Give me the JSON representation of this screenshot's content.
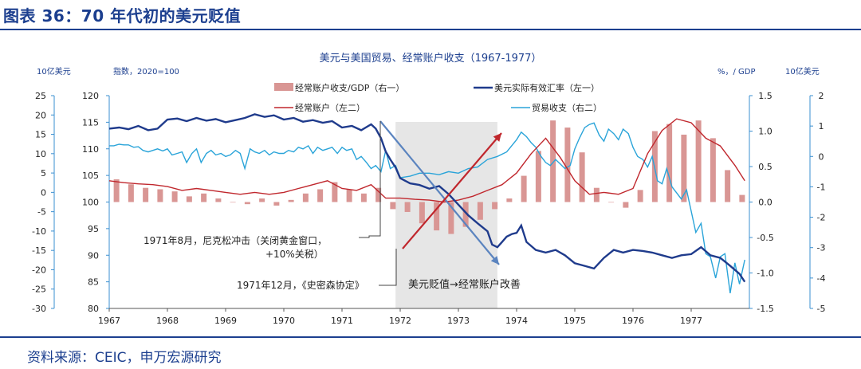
{
  "figure_title": "图表 36：70 年代初的美元贬值",
  "source": "资料来源：CEIC，申万宏源研究",
  "colors": {
    "brand": "#1c3f8f",
    "bar": "#d99694",
    "reer": "#1f3b8c",
    "current_account": "#c0272d",
    "trade": "#2aa4d9",
    "axis": "#3a8fd0",
    "shade": "#e6e6e6",
    "arrow_up": "#c0272d",
    "arrow_down": "#5b84bf"
  },
  "chart_data": {
    "type": "line",
    "title": "美元与美国贸易、经常账户收支（1967-1977）",
    "axis_titles": {
      "outer_left": "10亿美元",
      "inner_left": "指数，2020=100",
      "inner_right": "%，/ GDP",
      "outer_right": "10亿美元"
    },
    "x_ticks": [
      "1967",
      "1968",
      "1969",
      "1970",
      "1971",
      "1972",
      "1973",
      "1974",
      "1975",
      "1976",
      "1977"
    ],
    "axes": {
      "outer_left": {
        "ylim": [
          -30,
          25
        ],
        "ticks": [
          "25",
          "20",
          "15",
          "10",
          "5",
          "0",
          "-5",
          "-10",
          "-15",
          "-20",
          "-25",
          "-30"
        ]
      },
      "inner_left": {
        "ylim": [
          80,
          120
        ],
        "ticks": [
          "120",
          "115",
          "110",
          "105",
          "100",
          "95",
          "90",
          "85",
          "80"
        ]
      },
      "inner_right": {
        "ylim": [
          -1.5,
          1.5
        ],
        "ticks": [
          "1.5",
          "1.0",
          "0.5",
          "0.0",
          "-0.5",
          "-1.0",
          "-1.5"
        ]
      },
      "outer_right": {
        "ylim": [
          -5,
          2
        ],
        "ticks": [
          "2",
          "1",
          "0",
          "-1",
          "-2",
          "-3",
          "-4",
          "-5"
        ]
      }
    },
    "legend": [
      {
        "label": "经常账户收支/GDP（右一）",
        "kind": "bar",
        "color": "#d99694"
      },
      {
        "label": "美元实际有效汇率（左一）",
        "kind": "line",
        "color": "#1f3b8c"
      },
      {
        "label": "经常账户（左二）",
        "kind": "line",
        "color": "#c0272d"
      },
      {
        "label": "贸易收支（右二）",
        "kind": "line",
        "color": "#2aa4d9"
      }
    ],
    "bars_ca_gdp": {
      "x": [
        1967.0,
        1967.25,
        1967.5,
        1967.75,
        1968.0,
        1968.25,
        1968.5,
        1968.75,
        1969.0,
        1969.25,
        1969.5,
        1969.75,
        1970.0,
        1970.25,
        1970.5,
        1970.75,
        1971.0,
        1971.25,
        1971.5,
        1971.75,
        1972.0,
        1972.25,
        1972.5,
        1972.75,
        1973.0,
        1973.25,
        1973.5,
        1973.75,
        1974.0,
        1974.25,
        1974.5,
        1974.75,
        1975.0,
        1975.25,
        1975.5,
        1975.75,
        1976.0,
        1976.25,
        1976.5,
        1976.75,
        1977.0,
        1977.25,
        1977.5,
        1977.75
      ],
      "values": [
        0.32,
        0.25,
        0.2,
        0.18,
        0.15,
        0.08,
        0.12,
        0.05,
        0.0,
        -0.03,
        0.05,
        -0.05,
        0.03,
        0.12,
        0.18,
        0.28,
        0.18,
        0.12,
        0.2,
        -0.1,
        -0.14,
        -0.3,
        -0.4,
        -0.45,
        -0.35,
        -0.25,
        -0.1,
        0.05,
        0.37,
        0.72,
        1.15,
        1.05,
        0.7,
        0.2,
        0.0,
        -0.08,
        0.17,
        1.0,
        1.1,
        0.95,
        1.15,
        0.9,
        0.45,
        0.1
      ]
    },
    "series_reer": {
      "name": "美元实际有效汇率（左一）",
      "x": [
        1967.0,
        1967.17,
        1967.33,
        1967.5,
        1967.67,
        1967.83,
        1968.0,
        1968.17,
        1968.33,
        1968.5,
        1968.67,
        1968.83,
        1969.0,
        1969.17,
        1969.33,
        1969.5,
        1969.67,
        1969.83,
        1970.0,
        1970.17,
        1970.33,
        1970.5,
        1970.67,
        1970.83,
        1971.0,
        1971.17,
        1971.33,
        1971.5,
        1971.58,
        1971.67,
        1971.75,
        1971.83,
        1971.92,
        1972.0,
        1972.17,
        1972.33,
        1972.5,
        1972.67,
        1972.83,
        1973.0,
        1973.17,
        1973.33,
        1973.5,
        1973.58,
        1973.67,
        1973.75,
        1973.83,
        1973.92,
        1974.0,
        1974.08,
        1974.17,
        1974.33,
        1974.5,
        1974.67,
        1974.83,
        1975.0,
        1975.17,
        1975.33,
        1975.5,
        1975.67,
        1975.83,
        1976.0,
        1976.17,
        1976.33,
        1976.5,
        1976.67,
        1976.83,
        1977.0,
        1977.17,
        1977.33,
        1977.5,
        1977.67,
        1977.83,
        1977.92
      ],
      "values": [
        113.8,
        114.0,
        113.7,
        114.3,
        113.5,
        113.8,
        115.5,
        115.7,
        115.2,
        115.8,
        115.3,
        115.6,
        115.0,
        115.4,
        115.8,
        116.5,
        116.0,
        116.3,
        115.5,
        115.8,
        115.1,
        115.4,
        114.9,
        115.2,
        114.0,
        114.3,
        113.5,
        114.6,
        113.8,
        112.0,
        109.5,
        108.0,
        106.5,
        104.5,
        103.5,
        103.2,
        102.5,
        103.0,
        101.5,
        99.5,
        97.5,
        96.0,
        94.5,
        92.0,
        91.5,
        92.5,
        93.5,
        94.0,
        94.2,
        95.6,
        92.5,
        91.0,
        90.5,
        91.0,
        90.0,
        88.5,
        88.0,
        87.5,
        89.5,
        91.0,
        90.5,
        91.0,
        90.8,
        90.5,
        90.0,
        89.5,
        90.0,
        90.2,
        91.5,
        90.0,
        89.5,
        88.0,
        86.5,
        85.0
      ]
    },
    "series_current_account": {
      "name": "经常账户（左二）",
      "x": [
        1967.0,
        1967.25,
        1967.5,
        1967.75,
        1968.0,
        1968.25,
        1968.5,
        1968.75,
        1969.0,
        1969.25,
        1969.5,
        1969.75,
        1970.0,
        1970.25,
        1970.5,
        1970.75,
        1971.0,
        1971.25,
        1971.5,
        1971.75,
        1972.0,
        1972.25,
        1972.5,
        1972.75,
        1973.0,
        1973.25,
        1973.5,
        1973.75,
        1974.0,
        1974.25,
        1974.5,
        1974.75,
        1975.0,
        1975.25,
        1975.5,
        1975.75,
        1976.0,
        1976.25,
        1976.5,
        1976.75,
        1977.0,
        1977.25,
        1977.5,
        1977.75,
        1977.92
      ],
      "values": [
        3,
        2.5,
        2.2,
        2,
        1.5,
        0.5,
        1,
        0.5,
        0,
        -0.5,
        0,
        -0.5,
        0,
        1,
        2,
        3,
        1,
        0.5,
        2,
        -1.5,
        -1.5,
        -1.8,
        -2,
        -2.5,
        -2,
        -1,
        0.5,
        2,
        5,
        10,
        14,
        9,
        3,
        -0.5,
        0,
        -0.5,
        1,
        10,
        16,
        19,
        18,
        14,
        12,
        7,
        3
      ]
    },
    "series_trade": {
      "name": "贸易收支（右二）",
      "x": [
        1967.0,
        1967.08,
        1967.17,
        1967.25,
        1967.33,
        1967.42,
        1967.5,
        1967.58,
        1967.67,
        1967.75,
        1967.83,
        1967.92,
        1968.0,
        1968.08,
        1968.17,
        1968.25,
        1968.33,
        1968.42,
        1968.5,
        1968.58,
        1968.67,
        1968.75,
        1968.83,
        1968.92,
        1969.0,
        1969.08,
        1969.17,
        1969.25,
        1969.33,
        1969.42,
        1969.5,
        1969.58,
        1969.67,
        1969.75,
        1969.83,
        1969.92,
        1970.0,
        1970.08,
        1970.17,
        1970.25,
        1970.33,
        1970.42,
        1970.5,
        1970.58,
        1970.67,
        1970.75,
        1970.83,
        1970.92,
        1971.0,
        1971.08,
        1971.17,
        1971.25,
        1971.33,
        1971.42,
        1971.5,
        1971.58,
        1971.67,
        1971.75,
        1971.83,
        1971.92,
        1972.0,
        1972.17,
        1972.33,
        1972.5,
        1972.67,
        1972.83,
        1973.0,
        1973.17,
        1973.33,
        1973.5,
        1973.67,
        1973.83,
        1974.0,
        1974.08,
        1974.17,
        1974.25,
        1974.33,
        1974.42,
        1974.5,
        1974.58,
        1974.67,
        1974.75,
        1974.83,
        1974.92,
        1975.0,
        1975.08,
        1975.17,
        1975.25,
        1975.33,
        1975.42,
        1975.5,
        1975.58,
        1975.67,
        1975.75,
        1975.83,
        1975.92,
        1976.0,
        1976.08,
        1976.17,
        1976.25,
        1976.33,
        1976.42,
        1976.5,
        1976.58,
        1976.67,
        1976.75,
        1976.83,
        1976.92,
        1977.0,
        1977.08,
        1977.17,
        1977.25,
        1977.33,
        1977.42,
        1977.5,
        1977.58,
        1977.67,
        1977.75,
        1977.83,
        1977.92
      ],
      "values": [
        0.35,
        0.35,
        0.4,
        0.38,
        0.38,
        0.3,
        0.32,
        0.2,
        0.15,
        0.2,
        0.25,
        0.18,
        0.25,
        0.05,
        0.1,
        0.15,
        -0.2,
        0.1,
        0.25,
        -0.2,
        0.1,
        0.2,
        0.05,
        0.1,
        0.0,
        0.05,
        0.2,
        0.1,
        -0.4,
        0.25,
        0.15,
        0.1,
        0.2,
        0.05,
        0.15,
        0.1,
        0.1,
        0.2,
        0.15,
        0.3,
        0.25,
        0.35,
        0.1,
        0.3,
        0.2,
        0.25,
        0.3,
        0.1,
        0.3,
        0.2,
        0.25,
        -0.1,
        0.0,
        -0.2,
        -0.4,
        -0.3,
        -0.5,
        0.2,
        -0.4,
        -0.3,
        -0.7,
        -0.65,
        -0.55,
        -0.55,
        -0.6,
        -0.5,
        -0.55,
        -0.4,
        -0.35,
        -0.1,
        0.0,
        0.15,
        0.55,
        0.8,
        0.65,
        0.45,
        0.3,
        0.0,
        -0.2,
        -0.3,
        -0.1,
        -0.25,
        -0.4,
        -0.3,
        0.25,
        0.6,
        0.95,
        1.05,
        1.1,
        0.7,
        0.5,
        0.9,
        0.75,
        0.55,
        0.9,
        0.75,
        0.3,
        0.0,
        -0.1,
        -0.35,
        0.0,
        -0.8,
        -0.9,
        -0.4,
        -1.0,
        -1.2,
        -1.4,
        -1.1,
        -1.8,
        -2.5,
        -2.2,
        -3.2,
        -3.3,
        -4.0,
        -3.3,
        -3.2,
        -4.5,
        -3.5,
        -4.2,
        -3.4
      ]
    },
    "shade_range": [
      1971.92,
      1973.67
    ],
    "annotations": {
      "shock": "1971年8月，尼克松冲击（关闭黄金窗口，\n+10%关税）",
      "smithsonian": "1971年12月，《史密森协定》",
      "note": "美元贬值→经常账户改善"
    }
  }
}
